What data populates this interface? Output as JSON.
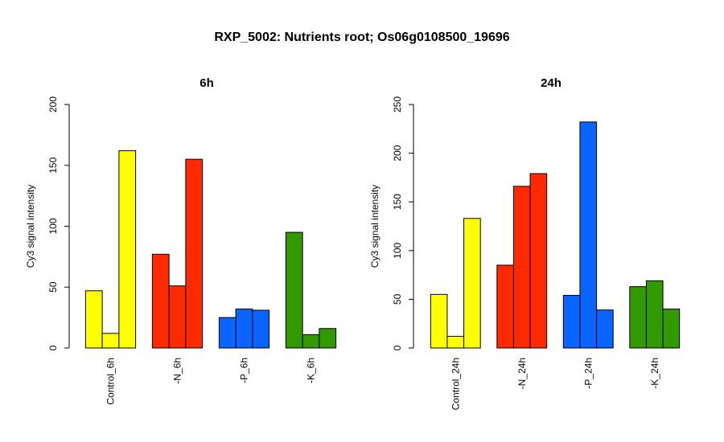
{
  "title": "RXP_5002: Nutrients root; Os06g0108500_19696",
  "chart_data": [
    {
      "type": "bar",
      "title": "6h",
      "ylabel": "Cy3 signal intensity",
      "ylim": [
        0,
        200
      ],
      "yticks": [
        0,
        50,
        100,
        150,
        200
      ],
      "categories": [
        "Control_6h",
        "-N_6h",
        "-P_6h",
        "-K_6h"
      ],
      "colors": [
        "#ffff00",
        "#ff2a00",
        "#0a64ff",
        "#339900"
      ],
      "values": [
        [
          47,
          12,
          162
        ],
        [
          77,
          51,
          155
        ],
        [
          25,
          32,
          31
        ],
        [
          95,
          11,
          16
        ]
      ],
      "grid": false,
      "legend": "none"
    },
    {
      "type": "bar",
      "title": "24h",
      "ylabel": "Cy3 signal intensity",
      "ylim": [
        0,
        250
      ],
      "yticks": [
        0,
        50,
        100,
        150,
        200,
        250
      ],
      "categories": [
        "Control_24h",
        "-N_24h",
        "-P_24h",
        "-K_24h"
      ],
      "colors": [
        "#ffff00",
        "#ff2a00",
        "#0a64ff",
        "#339900"
      ],
      "values": [
        [
          55,
          12,
          133
        ],
        [
          85,
          166,
          179
        ],
        [
          54,
          232,
          39
        ],
        [
          63,
          69,
          40
        ]
      ],
      "grid": false,
      "legend": "none"
    }
  ]
}
